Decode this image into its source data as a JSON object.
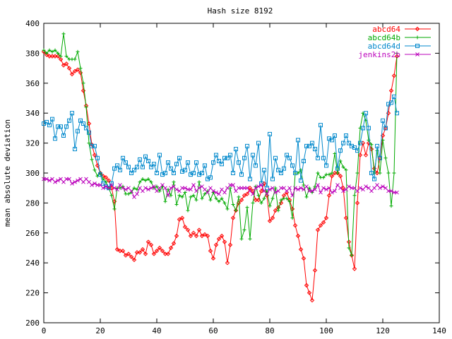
{
  "chart_data": {
    "type": "line",
    "title": "Hash size 8192",
    "xlabel": "",
    "ylabel": "mean absolute deviation",
    "xlim": [
      0,
      140
    ],
    "ylim": [
      200,
      400
    ],
    "xticks": [
      0,
      20,
      40,
      60,
      80,
      100,
      120,
      140
    ],
    "yticks": [
      200,
      220,
      240,
      260,
      280,
      300,
      320,
      340,
      360,
      380,
      400
    ],
    "grid": false,
    "legend_position": "top-right",
    "series": [
      {
        "name": "abcd64",
        "color": "#ff0000",
        "marker": "diamond",
        "values": [
          381,
          379,
          378,
          378,
          378,
          378,
          376,
          372,
          373,
          370,
          366,
          368,
          369,
          367,
          355,
          345,
          333,
          319,
          312,
          305,
          300,
          298,
          297,
          295,
          290,
          281,
          249,
          248,
          248,
          245,
          246,
          244,
          242,
          247,
          247,
          249,
          246,
          254,
          252,
          246,
          248,
          250,
          248,
          246,
          246,
          250,
          253,
          258,
          269,
          270,
          264,
          262,
          258,
          260,
          258,
          262,
          258,
          259,
          258,
          248,
          243,
          252,
          256,
          258,
          254,
          240,
          252,
          270,
          275,
          280,
          282,
          285,
          286,
          290,
          288,
          282,
          282,
          288,
          293,
          285,
          268,
          270,
          275,
          277,
          280,
          285,
          287,
          282,
          276,
          265,
          258,
          249,
          243,
          225,
          220,
          215,
          235,
          262,
          265,
          267,
          270,
          285,
          298,
          300,
          300,
          298,
          290,
          270,
          254,
          245,
          236,
          280,
          312,
          320,
          312,
          320,
          316,
          303,
          300,
          310,
          325,
          330,
          340,
          355,
          365,
          378
        ]
      },
      {
        "name": "abcd64b",
        "color": "#00aa00",
        "marker": "plus",
        "values": [
          382,
          380,
          382,
          381,
          382,
          380,
          378,
          393,
          378,
          376,
          376,
          376,
          381,
          370,
          360,
          344,
          320,
          309,
          302,
          298,
          300,
          296,
          294,
          290,
          285,
          276,
          290,
          290,
          291,
          286,
          286,
          287,
          290,
          289,
          294,
          296,
          295,
          296,
          294,
          290,
          291,
          288,
          291,
          281,
          289,
          285,
          294,
          279,
          285,
          284,
          287,
          275,
          284,
          285,
          282,
          294,
          283,
          286,
          288,
          282,
          287,
          283,
          281,
          283,
          280,
          276,
          290,
          279,
          275,
          284,
          256,
          262,
          277,
          256,
          280,
          291,
          285,
          280,
          283,
          288,
          278,
          283,
          290,
          275,
          282,
          283,
          283,
          281,
          270,
          300,
          300,
          302,
          292,
          284,
          290,
          287,
          291,
          300,
          297,
          297,
          299,
          299,
          300,
          313,
          300,
          308,
          304,
          302,
          250,
          245,
          285,
          300,
          330,
          340,
          335,
          322,
          319,
          300,
          315,
          300,
          322,
          310,
          300,
          278,
          300,
          380
        ]
      },
      {
        "name": "abcd64d",
        "color": "#0088cc",
        "marker": "square",
        "values": [
          333,
          334,
          332,
          336,
          323,
          331,
          331,
          325,
          331,
          335,
          340,
          316,
          328,
          335,
          333,
          330,
          327,
          318,
          318,
          310,
          299,
          293,
          291,
          290,
          293,
          303,
          305,
          302,
          310,
          307,
          304,
          300,
          302,
          304,
          309,
          304,
          311,
          308,
          304,
          306,
          300,
          312,
          299,
          300,
          307,
          303,
          300,
          306,
          310,
          301,
          302,
          307,
          299,
          300,
          307,
          299,
          300,
          305,
          296,
          297,
          307,
          312,
          308,
          306,
          310,
          310,
          312,
          300,
          316,
          307,
          299,
          310,
          318,
          296,
          312,
          305,
          320,
          293,
          302,
          290,
          326,
          296,
          310,
          302,
          300,
          303,
          312,
          310,
          305,
          300,
          322,
          295,
          308,
          318,
          318,
          320,
          316,
          310,
          332,
          310,
          305,
          323,
          322,
          325,
          303,
          315,
          320,
          325,
          320,
          318,
          317,
          315,
          320,
          330,
          340,
          330,
          300,
          296,
          318,
          310,
          335,
          330,
          346,
          347,
          351,
          340
        ]
      },
      {
        "name": "jenkins2b",
        "color": "#bb00bb",
        "marker": "x",
        "values": [
          296,
          296,
          295,
          296,
          294,
          295,
          296,
          294,
          296,
          296,
          293,
          294,
          295,
          296,
          294,
          296,
          294,
          292,
          293,
          292,
          292,
          290,
          291,
          290,
          292,
          290,
          289,
          292,
          290,
          289,
          290,
          288,
          284,
          286,
          290,
          288,
          290,
          289,
          290,
          291,
          288,
          290,
          292,
          290,
          285,
          290,
          291,
          289,
          288,
          290,
          290,
          289,
          289,
          292,
          288,
          290,
          291,
          289,
          287,
          290,
          288,
          287,
          286,
          289,
          287,
          290,
          292,
          292,
          288,
          290,
          290,
          290,
          290,
          288,
          286,
          290,
          291,
          292,
          288,
          286,
          289,
          290,
          287,
          288,
          290,
          290,
          288,
          290,
          285,
          290,
          289,
          290,
          289,
          291,
          288,
          288,
          289,
          292,
          287,
          290,
          289,
          290,
          287,
          288,
          292,
          290,
          288,
          289,
          291,
          290,
          290,
          288,
          290,
          289,
          291,
          290,
          288,
          290,
          292,
          290,
          291,
          290,
          288,
          288,
          287,
          287
        ]
      }
    ]
  }
}
